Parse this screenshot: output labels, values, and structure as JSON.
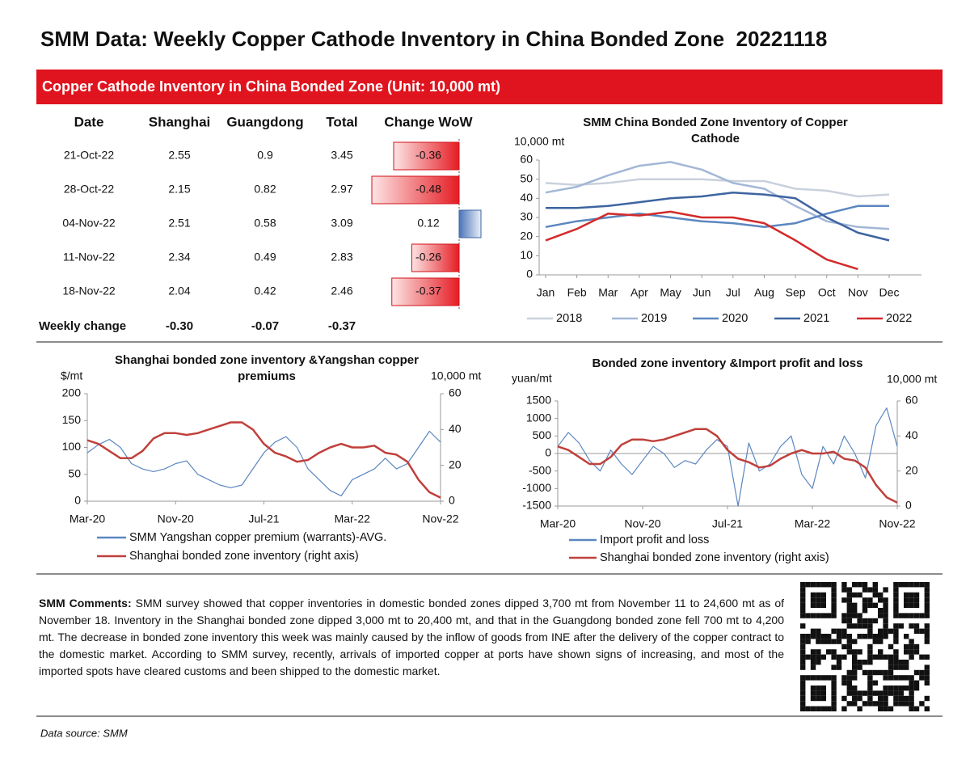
{
  "header": {
    "title": "SMM Data: Weekly Copper Cathode Inventory in China Bonded Zone  20221118",
    "banner": "Copper Cathode Inventory in China Bonded Zone (Unit: 10,000 mt)"
  },
  "table": {
    "columns": [
      "Date",
      "Shanghai",
      "Guangdong",
      "Total",
      "Change WoW"
    ],
    "rows": [
      [
        "21-Oct-22",
        "2.55",
        "0.9",
        "3.45",
        "-0.36"
      ],
      [
        "28-Oct-22",
        "2.15",
        "0.82",
        "2.97",
        "-0.48"
      ],
      [
        "04-Nov-22",
        "2.51",
        "0.58",
        "3.09",
        "0.12"
      ],
      [
        "11-Nov-22",
        "2.34",
        "0.49",
        "2.83",
        "-0.26"
      ],
      [
        "18-Nov-22",
        "2.04",
        "0.42",
        "2.46",
        "-0.37"
      ]
    ],
    "summary": [
      "Weekly change",
      "-0.30",
      "-0.07",
      "-0.37"
    ]
  },
  "chart_data": [
    {
      "type": "line",
      "title": "SMM China Bonded Zone Inventory of Copper Cathode",
      "ylabel": "10,000 mt",
      "categories": [
        "Jan",
        "Feb",
        "Mar",
        "Apr",
        "May",
        "Jun",
        "Jul",
        "Aug",
        "Sep",
        "Oct",
        "Nov",
        "Dec"
      ],
      "ylim": [
        0,
        60
      ],
      "yticks": [
        0,
        10,
        20,
        30,
        40,
        50,
        60
      ],
      "series": [
        {
          "name": "2018",
          "color": "#c9d1dd",
          "values": [
            48,
            47,
            48,
            50,
            50,
            50,
            49,
            49,
            45,
            44,
            41,
            42
          ]
        },
        {
          "name": "2019",
          "color": "#a3b7d6",
          "values": [
            43,
            46,
            52,
            57,
            59,
            55,
            48,
            45,
            36,
            28,
            25,
            24
          ]
        },
        {
          "name": "2020",
          "color": "#5b87c0",
          "values": [
            25,
            28,
            30,
            32,
            30,
            28,
            27,
            25,
            27,
            32,
            36,
            36
          ]
        },
        {
          "name": "2021",
          "color": "#3d64a0",
          "values": [
            35,
            35,
            36,
            38,
            40,
            41,
            43,
            42,
            40,
            30,
            22,
            18
          ]
        },
        {
          "name": "2022",
          "color": "#d42a2a",
          "values": [
            18,
            24,
            32,
            31,
            33,
            30,
            30,
            27,
            18,
            8,
            3,
            null
          ]
        }
      ]
    },
    {
      "type": "line",
      "title": "Shanghai bonded zone inventory &Yangshan copper premiums",
      "ylabel": "$/mt",
      "y2label": "10,000 mt",
      "categories": [
        "Mar-20",
        null,
        null,
        null,
        null,
        null,
        null,
        null,
        "Nov-20",
        null,
        null,
        null,
        null,
        null,
        null,
        null,
        "Jul-21",
        null,
        null,
        null,
        null,
        null,
        null,
        null,
        "Mar-22",
        null,
        null,
        null,
        null,
        null,
        null,
        null,
        "Nov-22"
      ],
      "ylim": [
        0,
        200
      ],
      "yticks": [
        0,
        50,
        100,
        150,
        200
      ],
      "y2lim": [
        0,
        60
      ],
      "y2ticks": [
        0,
        20,
        40,
        60
      ],
      "series": [
        {
          "name": "SMM Yangshan copper premium (warrants)-AVG.",
          "color": "#5b87c0",
          "axis": "y",
          "values": [
            90,
            105,
            115,
            100,
            70,
            60,
            55,
            60,
            70,
            75,
            50,
            40,
            30,
            25,
            30,
            60,
            90,
            110,
            120,
            100,
            60,
            40,
            20,
            10,
            40,
            50,
            60,
            80,
            60,
            70,
            100,
            130,
            110
          ]
        },
        {
          "name": "Shanghai bonded zone inventory (right axis)",
          "color": "#c0403b",
          "axis": "y2",
          "values": [
            34,
            32,
            28,
            24,
            24,
            28,
            35,
            38,
            38,
            37,
            38,
            40,
            42,
            44,
            44,
            40,
            32,
            27,
            25,
            22,
            23,
            27,
            30,
            32,
            30,
            30,
            31,
            27,
            26,
            22,
            12,
            5,
            2
          ]
        }
      ]
    },
    {
      "type": "line",
      "title": "Bonded zone inventory &Import profit and loss",
      "ylabel": "yuan/mt",
      "y2label": "10,000 mt",
      "categories": [
        "Mar-20",
        null,
        null,
        null,
        null,
        null,
        null,
        null,
        "Nov-20",
        null,
        null,
        null,
        null,
        null,
        null,
        null,
        "Jul-21",
        null,
        null,
        null,
        null,
        null,
        null,
        null,
        "Mar-22",
        null,
        null,
        null,
        null,
        null,
        null,
        null,
        "Nov-22"
      ],
      "ylim": [
        -1500,
        1500
      ],
      "yticks": [
        -1500,
        -1000,
        -500,
        0,
        500,
        1000,
        1500
      ],
      "y2lim": [
        0,
        60
      ],
      "y2ticks": [
        0,
        20,
        40,
        60
      ],
      "series": [
        {
          "name": "Import profit and loss",
          "color": "#5b87c0",
          "axis": "y",
          "values": [
            200,
            600,
            300,
            -200,
            -500,
            100,
            -300,
            -600,
            -200,
            200,
            0,
            -400,
            -200,
            -300,
            100,
            400,
            200,
            -1500,
            300,
            -500,
            -300,
            200,
            500,
            -600,
            -1000,
            200,
            -300,
            500,
            0,
            -700,
            800,
            1300,
            200
          ]
        },
        {
          "name": "Shanghai bonded zone inventory (right axis)",
          "color": "#c0403b",
          "axis": "y2",
          "values": [
            34,
            32,
            28,
            24,
            24,
            28,
            35,
            38,
            38,
            37,
            38,
            40,
            42,
            44,
            44,
            40,
            32,
            27,
            25,
            22,
            23,
            27,
            30,
            32,
            30,
            30,
            31,
            27,
            26,
            22,
            12,
            5,
            2
          ]
        }
      ]
    }
  ],
  "comments": {
    "label": "SMM Comments:",
    "text": "SMM survey showed that copper inventories in domestic bonded zones dipped 3,700 mt from November 11 to 24,600 mt as of November 18. Inventory in the Shanghai bonded zone dipped 3,000 mt to 20,400 mt, and that in the Guangdong bonded zone fell 700 mt to 4,200 mt. The decrease in bonded zone inventory this week was mainly caused by the inflow of goods from INE after the delivery of the copper contract to the domestic market. According to SMM survey, recently, arrivals of imported copper at ports have shown signs of increasing, and most of the imported spots have cleared customs and been shipped to the domestic market."
  },
  "source": "Data source: SMM"
}
